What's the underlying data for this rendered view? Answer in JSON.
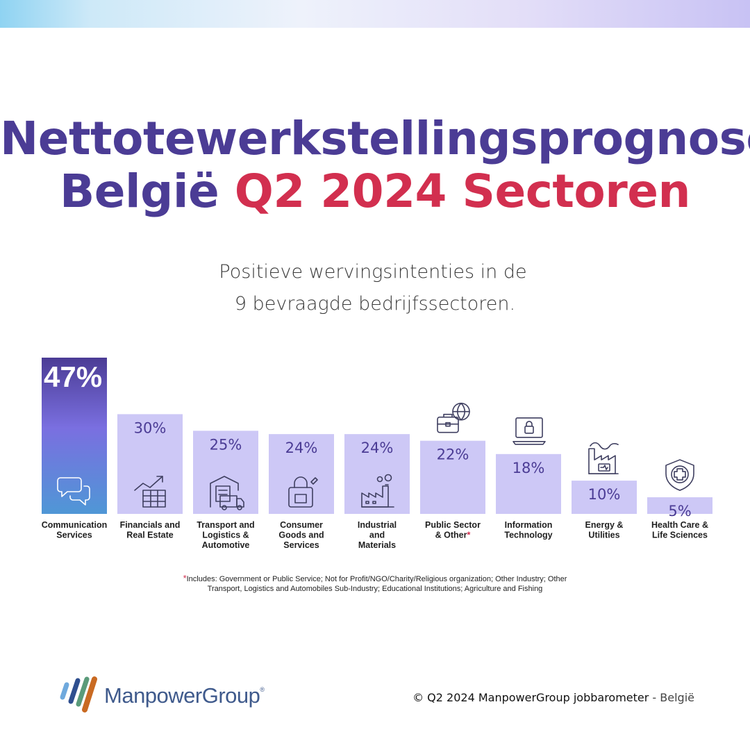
{
  "title": {
    "line1": "Nettotewerkstellingsprognose",
    "line2_part1": "België",
    "line2_highlight": "Q2 2024",
    "line2_part3": "Sectoren"
  },
  "subtitle": {
    "line1": "Positieve wervingsintenties in de",
    "line2": "9 bevraagde bedrijfssectoren."
  },
  "colors": {
    "title_purple": "#4b3c95",
    "accent_red": "#d22f4f",
    "bar_light": "#cdc8f6",
    "bar_highlight_top": "#4b3c95",
    "bar_highlight_mid": "#7a6fe0",
    "bar_highlight_bottom": "#4f97d6"
  },
  "chart_data": {
    "type": "bar",
    "categories": [
      "Communication Services",
      "Financials and Real Estate",
      "Transport and Logistics & Automotive",
      "Consumer Goods and Services",
      "Industrial and Materials",
      "Public Sector & Other*",
      "Information Technology",
      "Energy & Utilities",
      "Health Care & Life Sciences"
    ],
    "category_label_lines": [
      [
        "Communication",
        "Services"
      ],
      [
        "Financials and",
        "Real Estate"
      ],
      [
        "Transport and",
        "Logistics &",
        "Automotive"
      ],
      [
        "Consumer",
        "Goods and",
        "Services"
      ],
      [
        "Industrial",
        "and",
        "Materials"
      ],
      [
        "Public Sector",
        "& Other*"
      ],
      [
        "Information",
        "Technology"
      ],
      [
        "Energy &",
        "Utilities"
      ],
      [
        "Health Care &",
        "Life Sciences"
      ]
    ],
    "values": [
      47,
      30,
      25,
      24,
      24,
      22,
      18,
      10,
      5
    ],
    "value_labels": [
      "47%",
      "30%",
      "25%",
      "24%",
      "24%",
      "22%",
      "18%",
      "10%",
      "5%"
    ],
    "icons": [
      "chat-bubbles-icon",
      "growth-chart-icon",
      "warehouse-truck-icon",
      "shopping-bag-icon",
      "factory-icon",
      "briefcase-globe-icon",
      "laptop-lock-icon",
      "power-plant-icon",
      "medical-shield-icon"
    ],
    "highlight_index": 0,
    "title": "",
    "xlabel": "",
    "ylabel": "",
    "grid": false
  },
  "footnote": {
    "marker": "*",
    "line1": "Includes: Government or Public Service; Not for Profit/NGO/Charity/Religious organization; Other Industry; Other",
    "line2": "Transport, Logistics and Automobiles Sub-Industry; Educational Institutions; Agriculture and Fishing"
  },
  "logo": {
    "name": "ManpowerGroup",
    "registered": "®"
  },
  "copyright": {
    "main": "© Q2 2024 ManpowerGroup jobbarometer",
    "region": " - België"
  }
}
